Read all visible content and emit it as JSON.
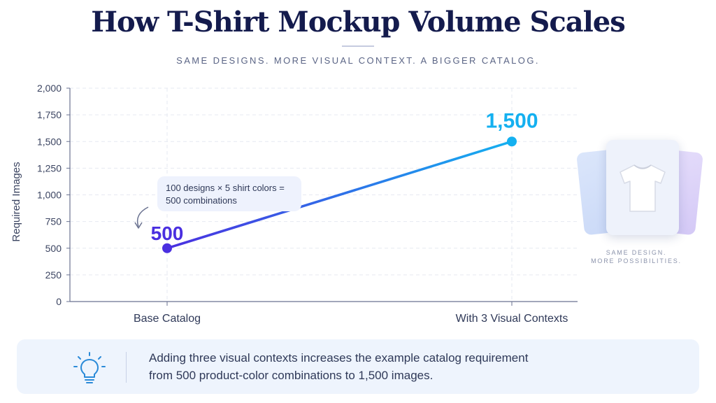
{
  "header": {
    "title": "How T-Shirt Mockup Volume Scales",
    "subtitle": "SAME DESIGNS. MORE VISUAL CONTEXT. A BIGGER CATALOG."
  },
  "chart_data": {
    "type": "line",
    "categories": [
      "Base Catalog",
      "With 3 Visual Contexts"
    ],
    "values": [
      500,
      1500
    ],
    "value_labels": [
      "500",
      "1,500"
    ],
    "ylabel": "Required Images",
    "ylim": [
      0,
      2000
    ],
    "yticks": [
      0,
      250,
      500,
      750,
      1000,
      1250,
      1500,
      1750,
      2000
    ],
    "ytick_labels": [
      "0",
      "250",
      "500",
      "750",
      "1,000",
      "1,250",
      "1,500",
      "1,750",
      "2,000"
    ],
    "grid": true,
    "annotation": {
      "line1": "100 designs × 5 shirt colors =",
      "line2": "500 combinations"
    },
    "colors": {
      "start": "#4a2fe0",
      "end": "#14b0f0",
      "axis": "#6a7290",
      "grid": "#e6e9f1",
      "tick_text": "#3b4461"
    }
  },
  "side_panel": {
    "icon": "t-shirt-icon",
    "caption": "SAME DESIGN.\nMORE POSSIBILITIES."
  },
  "footnote": {
    "icon": "lightbulb-icon",
    "line1": "Adding three visual contexts increases the example catalog requirement",
    "line2": "from 500 product-color combinations to 1,500 images."
  }
}
